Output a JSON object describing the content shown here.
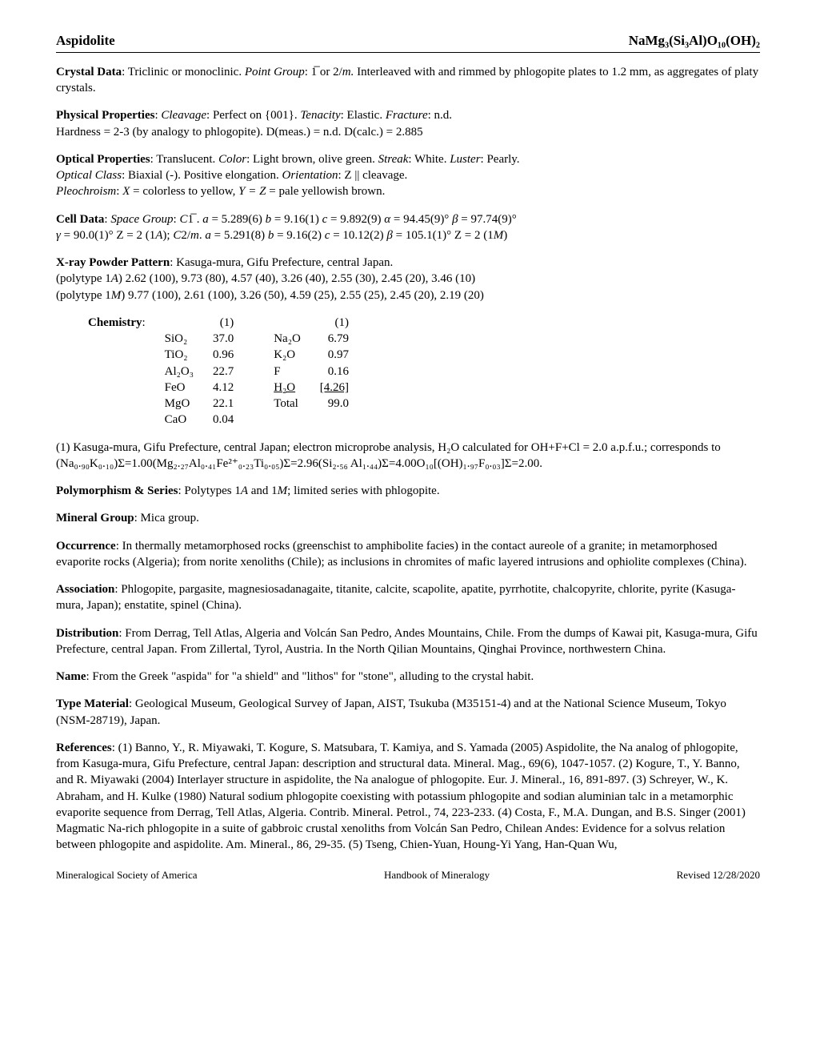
{
  "header": {
    "left": "Aspidolite",
    "right": "NaMg₃(Si₃Al)O₁₀(OH)₂"
  },
  "crystalData": {
    "label": "Crystal Data",
    "system": ": Triclinic or monoclinic.  ",
    "pgLabel": "Point Group",
    "pg": ": 1̅ or 2/",
    "pgItalic": "m.",
    "rest": "     Interleaved with and rimmed by phlogopite plates to 1.2 mm, as aggregates of platy crystals."
  },
  "physProps": {
    "label": "Physical Properties",
    "cleavageLabel": "Cleavage",
    "cleavage": ": Perfect on {001}.     ",
    "tenacityLabel": "Tenacity",
    "tenacity": ": Elastic.    ",
    "fractureLabel": "Fracture",
    "fracture": ": n.d.",
    "hardness": "Hardness = 2-3 (by analogy to phlogopite).              D(meas.) = n.d.    D(calc.) = 2.885"
  },
  "optProps": {
    "label": "Optical Properties",
    "line1a": ": Translucent.   ",
    "colorLabel": "Color",
    "color": ": Light brown, olive green.   ",
    "streakLabel": "Streak",
    "streak": ": White.   ",
    "lusterLabel": "Luster",
    "luster": ": Pearly.",
    "classLabel": "Optical Class",
    "class": ": Biaxial (-).   Positive elongation.   ",
    "orientLabel": "Orientation",
    "orient": ": Z || cleavage.",
    "pleoLabel": "Pleochroism",
    "pleo1": ": ",
    "pleoX": "X",
    "pleo2": " = colorless to yellow, ",
    "pleoYZ": "Y = Z",
    "pleo3": " = pale yellowish brown."
  },
  "cellData": {
    "label": "Cell Data",
    "sgLabel": "Space Group",
    "sg1": ": ",
    "sg1val": "C",
    "sg1bar": "1̅",
    "line1": " .   ",
    "a1": "a",
    "a1v": " = 5.289(6)  ",
    "b1": "b",
    "b1v": " = 9.16(1)  ",
    "c1": "c",
    "c1v": " = 9.892(9)   ",
    "alpha": "α",
    "alphav": " = 94.45(9)°  ",
    "beta": "β",
    "betav": " = 97.74(9)°",
    "gamma": "γ",
    "gammav": " = 90.0(1)°  Z = 2  (1",
    "poly1": "A",
    "line2a": ");  ",
    "sg2": "C",
    "sg2m": "2/",
    "sg2mm": "m",
    "line2b": ".   ",
    "a2": "a",
    "a2v": " = 5.291(8)  ",
    "b2": "b",
    "b2v": " = 9.16(2)   ",
    "c2": "c",
    "c2v": " = 10.12(2)  ",
    "beta2": "β",
    "beta2v": " = 105.1(1)°  Z = 2  (1",
    "poly2": "M",
    "end": ")"
  },
  "xray": {
    "label": "X-ray Powder Pattern",
    "loc": ": Kasuga-mura, Gifu Prefecture, central Japan.",
    "p1label": "(polytype 1",
    "p1A": "A",
    "p1data": ")   2.62 (100), 9.73 (80), 4.57 (40), 3.26 (40), 2.55 (30), 2.45 (20), 3.46 (10)",
    "p2label": "(polytype 1",
    "p2M": "M",
    "p2data": ")  9.77 (100), 2.61 (100), 3.26 (50), 4.59 (25), 2.55 (25), 2.45 (20), 2.19 (20)"
  },
  "chemistry": {
    "label": "Chemistry",
    "colhead": "(1)",
    "rows": [
      {
        "ox": "SiO₂",
        "v1": "37.0",
        "ox2": "Na₂O",
        "v2": "6.79"
      },
      {
        "ox": "TiO₂",
        "v1": "0.96",
        "ox2": "K₂O",
        "v2": "0.97"
      },
      {
        "ox": "Al₂O₃",
        "v1": "22.7",
        "ox2": "F",
        "v2": "0.16"
      },
      {
        "ox": "FeO",
        "v1": "4.12",
        "ox2": "H₂O",
        "v2": "[4.26]",
        "underline": true
      },
      {
        "ox": "MgO",
        "v1": "22.1",
        "ox2": "Total",
        "v2": "99.0"
      },
      {
        "ox": "CaO",
        "v1": "0.04",
        "ox2": "",
        "v2": ""
      }
    ],
    "note1": "(1) Kasuga-mura, Gifu Prefecture, central Japan; electron microprobe analysis, H₂O calculated for OH+F+Cl = 2.0 a.p.f.u.; corresponds to (Na₀.₉₀K₀.₁₀)Σ=1.00(Mg₂.₂₇Al₀.₄₁Fe²⁺₀.₂₃Ti₀.₀₅)Σ=2.96(Si₂.₅₆ Al₁.₄₄)Σ=4.00O₁₀[(OH)₁.₉₇F₀.₀₃]Σ=2.00."
  },
  "poly": {
    "label": "Polymorphism & Series",
    "text1": ":  Polytypes 1",
    "A": "A",
    "text2": " and 1",
    "M": "M",
    "text3": "; limited series with phlogopite."
  },
  "group": {
    "label": "Mineral Group",
    "text": ": Mica group."
  },
  "occurrence": {
    "label": "Occurrence",
    "text": ": In thermally metamorphosed rocks (greenschist to amphibolite facies) in the contact aureole of a granite; in metamorphosed evaporite rocks (Algeria); from norite xenoliths (Chile); as inclusions in chromites of mafic layered intrusions and ophiolite complexes (China)."
  },
  "assoc": {
    "label": "Association",
    "text": ": Phlogopite, pargasite, magnesiosadanagaite, titanite, calcite, scapolite, apatite, pyrrhotite, chalcopyrite, chlorite, pyrite (Kasuga-mura, Japan); enstatite, spinel (China)."
  },
  "dist": {
    "label": "Distribution",
    "text": ": From Derrag, Tell Atlas, Algeria and Volcán San Pedro, Andes Mountains, Chile. From the dumps of Kawai pit, Kasuga-mura, Gifu Prefecture, central Japan. From Zillertal, Tyrol, Austria.  In the North Qilian Mountains, Qinghai Province, northwestern China."
  },
  "name": {
    "label": "Name",
    "text": ": From the Greek \"aspida\" for \"a shield\" and \"lithos\" for \"stone\", alluding to the crystal habit."
  },
  "type": {
    "label": "Type Material",
    "text": ": Geological Museum, Geological Survey of Japan, AIST, Tsukuba (M35151-4) and at the National Science Museum, Tokyo (NSM-28719), Japan."
  },
  "refs": {
    "label": "References",
    "text": ": (1) Banno, Y., R. Miyawaki, T. Kogure, S. Matsubara, T. Kamiya, and S. Yamada (2005) Aspidolite, the Na analog of phlogopite, from Kasuga-mura, Gifu Prefecture, central Japan: description and structural data. Mineral. Mag., 69(6), 1047-1057. (2) Kogure, T., Y. Banno, and R. Miyawaki (2004) Interlayer structure in aspidolite, the Na analogue of phlogopite. Eur. J. Mineral., 16, 891-897. (3) Schreyer, W., K. Abraham, and H. Kulke (1980) Natural sodium phlogopite coexisting with potassium phlogopite and sodian aluminian talc in a metamorphic evaporite sequence from Derrag, Tell Atlas, Algeria. Contrib. Mineral. Petrol., 74, 223-233.  (4) Costa, F., M.A. Dungan, and B.S. Singer (2001) Magmatic Na-rich phlogopite in a suite of gabbroic crustal xenoliths from Volcán San Pedro, Chilean Andes: Evidence for a solvus relation between phlogopite and aspidolite. Am. Mineral., 86, 29-35.  (5) Tseng,  Chien-Yuan, Houng-Yi Yang, Han-Quan Wu,"
  },
  "footer": {
    "left": "Mineralogical Society of America",
    "mid": "Handbook of Mineralogy",
    "right": "Revised 12/28/2020"
  }
}
